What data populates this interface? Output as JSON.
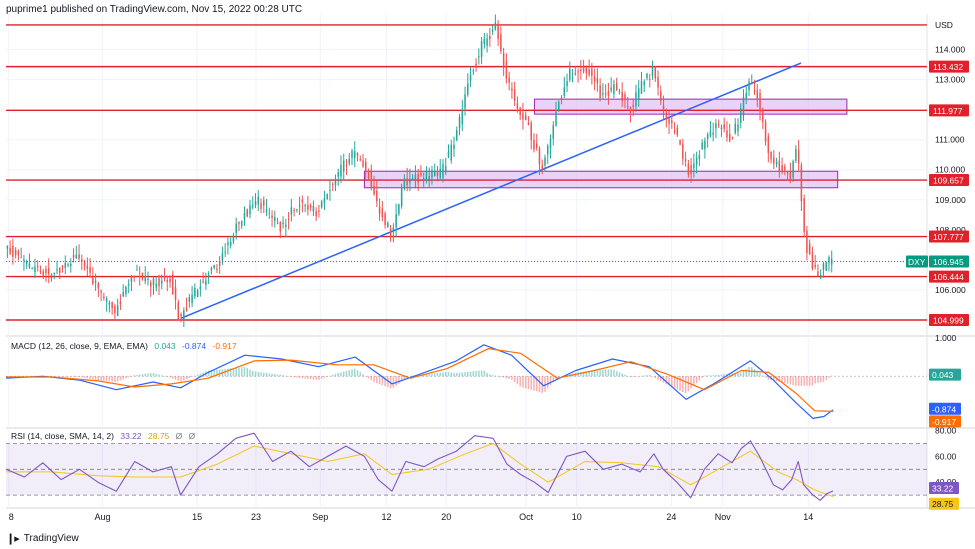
{
  "header": {
    "publisher_text": "puprime1 published on TradingView.com, Nov 15, 2022 00:28 UTC"
  },
  "footer": {
    "brand": "TradingView",
    "logo": "tradingview-logo-icon"
  },
  "colors": {
    "up": "#26a69a",
    "down": "#ef5350",
    "level": "#e0202a",
    "trendline": "#2962ff",
    "zone_fill": "#e1c4f5",
    "zone_border": "#9c27b0",
    "macd": "#2962ff",
    "signal": "#ff6d00",
    "rsi": "#7e57c2",
    "rsi_ma": "#f5c518",
    "dxy_tag": "#089981",
    "grid": "#f0f3fa"
  },
  "price_axis": {
    "currency": "USD",
    "ticks": [
      "114.000",
      "113.000",
      "111.000",
      "110.000",
      "109.000",
      "108.000",
      "106.000"
    ],
    "range": [
      104.6,
      115.05
    ]
  },
  "levels": [
    {
      "value": 114.82,
      "label": ""
    },
    {
      "value": 113.432,
      "label": "113.432"
    },
    {
      "value": 111.977,
      "label": "111.977"
    },
    {
      "value": 109.657,
      "label": "109.657"
    },
    {
      "value": 107.777,
      "label": "107.777"
    },
    {
      "value": 106.444,
      "label": "106.444"
    },
    {
      "value": 104.999,
      "label": "104.999"
    }
  ],
  "current_price": {
    "symbol": "DXY",
    "value": "106.945"
  },
  "zones": [
    {
      "from": 111.85,
      "to": 112.35,
      "start": 0.575,
      "end": 0.915
    },
    {
      "from": 109.4,
      "to": 109.95,
      "start": 0.39,
      "end": 0.905
    }
  ],
  "trendline": {
    "from": [
      0.19,
      105.05
    ],
    "to": [
      0.865,
      113.55
    ]
  },
  "x_axis": {
    "ticks": [
      {
        "label": "8",
        "pos": 0.003
      },
      {
        "label": "Aug",
        "pos": 0.105
      },
      {
        "label": "15",
        "pos": 0.208
      },
      {
        "label": "23",
        "pos": 0.272
      },
      {
        "label": "Sep",
        "pos": 0.342
      },
      {
        "label": "12",
        "pos": 0.414
      },
      {
        "label": "20",
        "pos": 0.479
      },
      {
        "label": "Oct",
        "pos": 0.566
      },
      {
        "label": "10",
        "pos": 0.621
      },
      {
        "label": "24",
        "pos": 0.724
      },
      {
        "label": "Nov",
        "pos": 0.78
      },
      {
        "label": "14",
        "pos": 0.873
      }
    ]
  },
  "price_path": [
    [
      0.0,
      107.55
    ],
    [
      0.02,
      106.9
    ],
    [
      0.05,
      106.5
    ],
    [
      0.08,
      107.2
    ],
    [
      0.1,
      106.1
    ],
    [
      0.12,
      105.3
    ],
    [
      0.14,
      106.6
    ],
    [
      0.16,
      106.2
    ],
    [
      0.18,
      106.4
    ],
    [
      0.19,
      105.0
    ],
    [
      0.21,
      106.1
    ],
    [
      0.235,
      107.0
    ],
    [
      0.255,
      108.3
    ],
    [
      0.275,
      109.0
    ],
    [
      0.3,
      108.1
    ],
    [
      0.32,
      108.9
    ],
    [
      0.34,
      108.6
    ],
    [
      0.36,
      109.8
    ],
    [
      0.38,
      110.6
    ],
    [
      0.395,
      110.0
    ],
    [
      0.405,
      108.8
    ],
    [
      0.42,
      107.9
    ],
    [
      0.435,
      109.6
    ],
    [
      0.46,
      109.8
    ],
    [
      0.475,
      109.9
    ],
    [
      0.49,
      111.0
    ],
    [
      0.505,
      113.0
    ],
    [
      0.52,
      114.2
    ],
    [
      0.535,
      114.8
    ],
    [
      0.545,
      113.2
    ],
    [
      0.555,
      112.2
    ],
    [
      0.57,
      111.4
    ],
    [
      0.585,
      110.0
    ],
    [
      0.6,
      112.0
    ],
    [
      0.615,
      113.2
    ],
    [
      0.635,
      113.4
    ],
    [
      0.65,
      112.4
    ],
    [
      0.665,
      112.8
    ],
    [
      0.68,
      112.0
    ],
    [
      0.695,
      112.9
    ],
    [
      0.705,
      113.3
    ],
    [
      0.715,
      112.2
    ],
    [
      0.73,
      111.2
    ],
    [
      0.745,
      109.9
    ],
    [
      0.76,
      110.8
    ],
    [
      0.775,
      111.6
    ],
    [
      0.79,
      111.0
    ],
    [
      0.8,
      111.8
    ],
    [
      0.81,
      113.0
    ],
    [
      0.82,
      112.4
    ],
    [
      0.83,
      110.6
    ],
    [
      0.845,
      110.0
    ],
    [
      0.855,
      109.8
    ],
    [
      0.862,
      110.8
    ],
    [
      0.868,
      108.6
    ],
    [
      0.872,
      107.5
    ],
    [
      0.878,
      106.9
    ],
    [
      0.885,
      106.5
    ],
    [
      0.893,
      106.9
    ],
    [
      0.9,
      106.95
    ]
  ],
  "macd": {
    "title": "MACD (12, 26, close, 9, EMA, EMA)",
    "values": [
      "0.043",
      "-0.874",
      "-0.917"
    ],
    "tags": [
      "0.043",
      "-0.874",
      "-0.917"
    ],
    "range": [
      -1.35,
      1.05
    ],
    "axis_top": "1.000",
    "macd_path": [
      [
        0.0,
        -0.05
      ],
      [
        0.04,
        0.0
      ],
      [
        0.08,
        -0.1
      ],
      [
        0.12,
        -0.35
      ],
      [
        0.16,
        -0.15
      ],
      [
        0.19,
        -0.3
      ],
      [
        0.22,
        0.1
      ],
      [
        0.26,
        0.55
      ],
      [
        0.3,
        0.45
      ],
      [
        0.34,
        0.25
      ],
      [
        0.38,
        0.5
      ],
      [
        0.42,
        -0.2
      ],
      [
        0.45,
        0.05
      ],
      [
        0.49,
        0.4
      ],
      [
        0.52,
        0.82
      ],
      [
        0.55,
        0.55
      ],
      [
        0.585,
        -0.25
      ],
      [
        0.62,
        0.15
      ],
      [
        0.66,
        0.45
      ],
      [
        0.7,
        0.25
      ],
      [
        0.74,
        -0.6
      ],
      [
        0.77,
        -0.2
      ],
      [
        0.81,
        0.4
      ],
      [
        0.835,
        -0.1
      ],
      [
        0.86,
        -0.7
      ],
      [
        0.878,
        -1.1
      ],
      [
        0.89,
        -1.05
      ],
      [
        0.9,
        -0.874
      ]
    ],
    "signal_path": [
      [
        0.0,
        -0.02
      ],
      [
        0.05,
        -0.02
      ],
      [
        0.1,
        -0.12
      ],
      [
        0.14,
        -0.28
      ],
      [
        0.18,
        -0.2
      ],
      [
        0.22,
        -0.05
      ],
      [
        0.27,
        0.4
      ],
      [
        0.31,
        0.42
      ],
      [
        0.36,
        0.3
      ],
      [
        0.4,
        0.3
      ],
      [
        0.44,
        -0.05
      ],
      [
        0.48,
        0.2
      ],
      [
        0.525,
        0.72
      ],
      [
        0.56,
        0.6
      ],
      [
        0.6,
        -0.05
      ],
      [
        0.64,
        0.15
      ],
      [
        0.68,
        0.38
      ],
      [
        0.72,
        0.05
      ],
      [
        0.76,
        -0.35
      ],
      [
        0.8,
        0.15
      ],
      [
        0.83,
        0.1
      ],
      [
        0.86,
        -0.45
      ],
      [
        0.88,
        -0.9
      ],
      [
        0.9,
        -0.917
      ]
    ]
  },
  "rsi": {
    "title": "RSI (14, close, SMA, 14, 2)",
    "values": [
      "33.22",
      "28.75",
      "Ø",
      "Ø"
    ],
    "tags": [
      "33.22",
      "28.75"
    ],
    "range": [
      20,
      82
    ],
    "ticks": [
      "80.00",
      "60.00",
      "40.00"
    ],
    "bottom_label": "20.00",
    "band": [
      70,
      30
    ],
    "rsi_path": [
      [
        0.0,
        50
      ],
      [
        0.02,
        44
      ],
      [
        0.04,
        55
      ],
      [
        0.06,
        42
      ],
      [
        0.08,
        50
      ],
      [
        0.1,
        40
      ],
      [
        0.12,
        33
      ],
      [
        0.14,
        56
      ],
      [
        0.16,
        48
      ],
      [
        0.18,
        52
      ],
      [
        0.19,
        30
      ],
      [
        0.21,
        52
      ],
      [
        0.23,
        62
      ],
      [
        0.25,
        74
      ],
      [
        0.27,
        78
      ],
      [
        0.29,
        56
      ],
      [
        0.31,
        64
      ],
      [
        0.33,
        52
      ],
      [
        0.35,
        60
      ],
      [
        0.37,
        68
      ],
      [
        0.39,
        60
      ],
      [
        0.405,
        42
      ],
      [
        0.42,
        33
      ],
      [
        0.435,
        56
      ],
      [
        0.455,
        52
      ],
      [
        0.47,
        58
      ],
      [
        0.49,
        64
      ],
      [
        0.51,
        76
      ],
      [
        0.53,
        74
      ],
      [
        0.545,
        54
      ],
      [
        0.56,
        46
      ],
      [
        0.575,
        40
      ],
      [
        0.59,
        32
      ],
      [
        0.61,
        60
      ],
      [
        0.63,
        64
      ],
      [
        0.65,
        50
      ],
      [
        0.67,
        54
      ],
      [
        0.69,
        48
      ],
      [
        0.705,
        62
      ],
      [
        0.715,
        50
      ],
      [
        0.73,
        40
      ],
      [
        0.745,
        28
      ],
      [
        0.76,
        50
      ],
      [
        0.775,
        62
      ],
      [
        0.79,
        55
      ],
      [
        0.8,
        66
      ],
      [
        0.81,
        72
      ],
      [
        0.82,
        60
      ],
      [
        0.835,
        38
      ],
      [
        0.845,
        34
      ],
      [
        0.855,
        42
      ],
      [
        0.862,
        56
      ],
      [
        0.868,
        38
      ],
      [
        0.878,
        30
      ],
      [
        0.886,
        26
      ],
      [
        0.893,
        31
      ],
      [
        0.9,
        33.22
      ]
    ],
    "ma_path": [
      [
        0.0,
        48
      ],
      [
        0.05,
        48
      ],
      [
        0.1,
        45
      ],
      [
        0.14,
        44
      ],
      [
        0.19,
        44
      ],
      [
        0.23,
        54
      ],
      [
        0.27,
        68
      ],
      [
        0.31,
        62
      ],
      [
        0.35,
        56
      ],
      [
        0.39,
        62
      ],
      [
        0.42,
        46
      ],
      [
        0.46,
        50
      ],
      [
        0.5,
        62
      ],
      [
        0.53,
        70
      ],
      [
        0.56,
        54
      ],
      [
        0.59,
        40
      ],
      [
        0.63,
        56
      ],
      [
        0.67,
        55
      ],
      [
        0.71,
        52
      ],
      [
        0.745,
        38
      ],
      [
        0.78,
        52
      ],
      [
        0.81,
        64
      ],
      [
        0.84,
        48
      ],
      [
        0.86,
        42
      ],
      [
        0.88,
        34
      ],
      [
        0.9,
        28.75
      ]
    ]
  }
}
